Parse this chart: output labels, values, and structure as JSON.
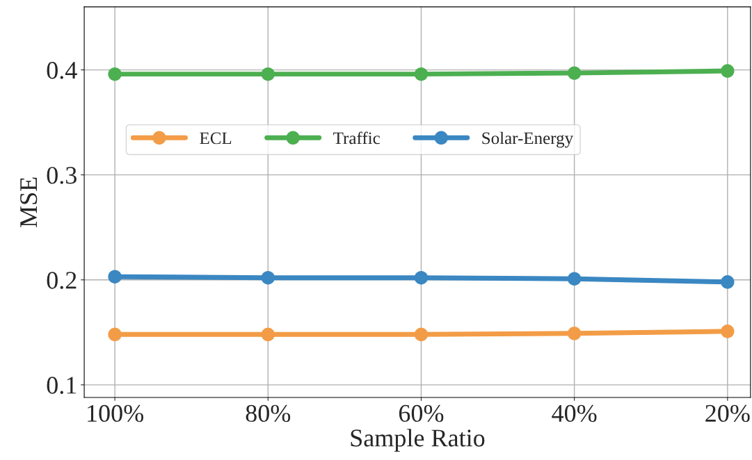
{
  "chart_data": {
    "type": "line",
    "xlabel": "Sample Ratio",
    "ylabel": "MSE",
    "categories": [
      "100%",
      "80%",
      "60%",
      "40%",
      "20%"
    ],
    "series": [
      {
        "name": "ECL",
        "color": "#f39c47",
        "values": [
          0.148,
          0.148,
          0.148,
          0.149,
          0.151
        ]
      },
      {
        "name": "Traffic",
        "color": "#4caf50",
        "values": [
          0.396,
          0.396,
          0.396,
          0.397,
          0.399
        ]
      },
      {
        "name": "Solar-Energy",
        "color": "#3a87c2",
        "values": [
          0.203,
          0.202,
          0.202,
          0.201,
          0.198
        ]
      }
    ],
    "ylim": [
      0.088,
      0.46
    ],
    "yticks": [
      0.1,
      0.2,
      0.3,
      0.4
    ],
    "grid": true,
    "legend": "left",
    "marker": "circle",
    "line_style": "solid"
  }
}
